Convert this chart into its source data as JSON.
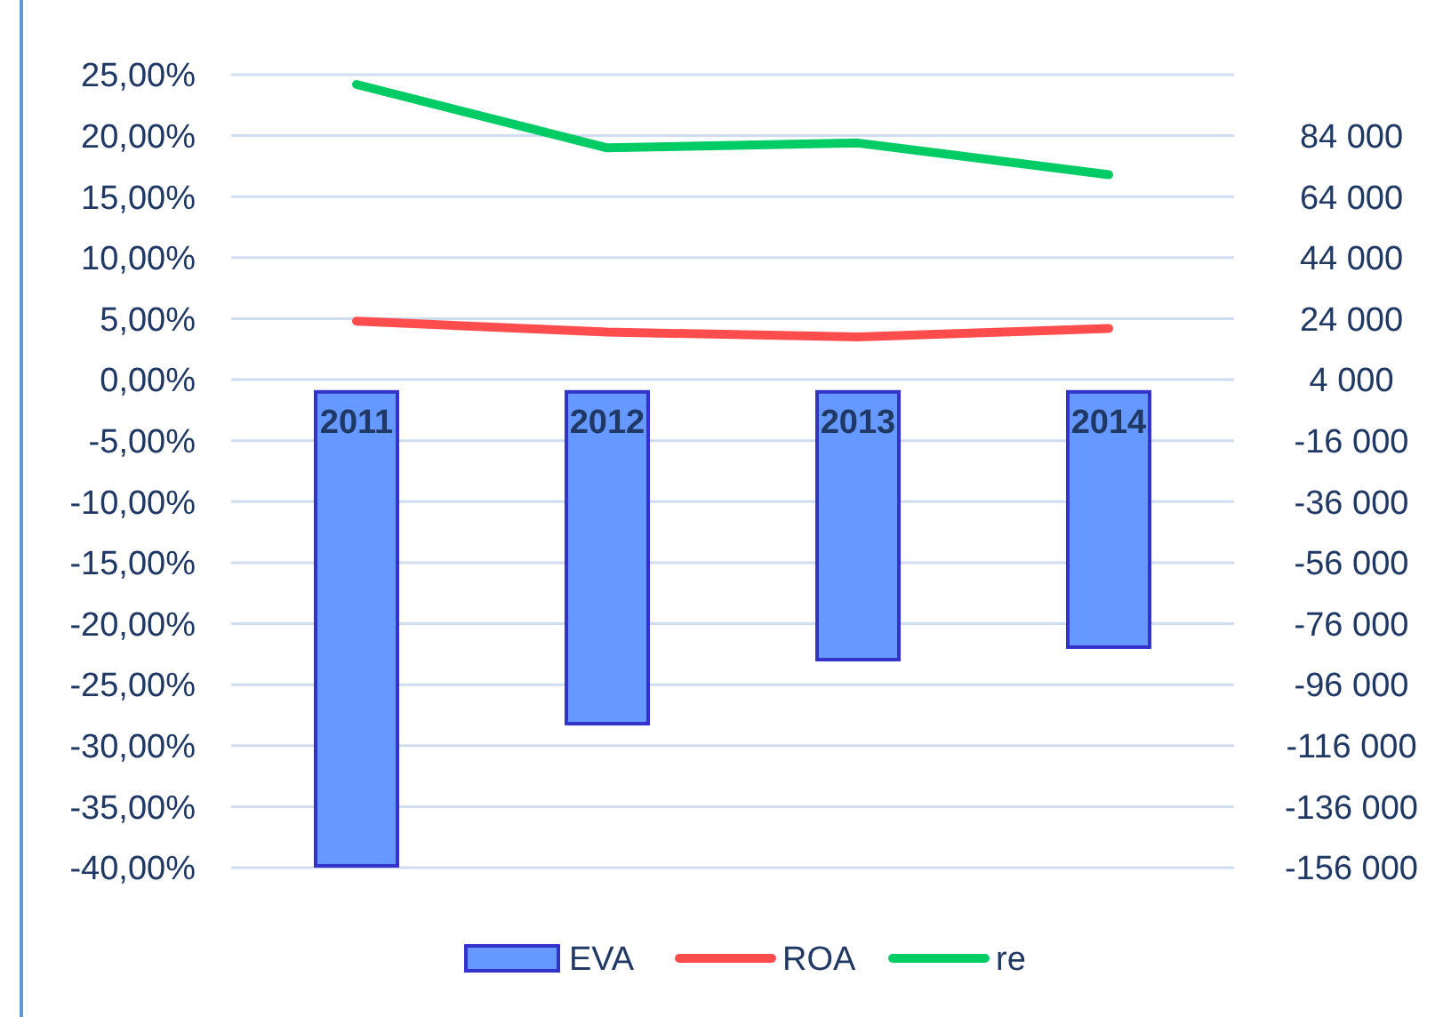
{
  "chart_data": {
    "type": "bar",
    "categories": [
      "2011",
      "2012",
      "2013",
      "2014"
    ],
    "series": [
      {
        "name": "EVA",
        "axis": "y2",
        "color": "#6699ff",
        "values": [
          -155400,
          -108800,
          -87800,
          -83700
        ]
      },
      {
        "name": "ROA",
        "type": "line",
        "color": "#ff4d4d",
        "values": [
          4.8,
          3.9,
          3.5,
          4.2
        ]
      },
      {
        "name": "re",
        "type": "line",
        "color": "#00cc66",
        "values": [
          24.2,
          19.0,
          19.4,
          16.8
        ]
      }
    ],
    "ylim": [
      -40,
      25
    ],
    "yticks": [
      {
        "value": -40,
        "label": "-40,00%"
      },
      {
        "value": -35,
        "label": "-35,00%"
      },
      {
        "value": -30,
        "label": "-30,00%"
      },
      {
        "value": -25,
        "label": "-25,00%"
      },
      {
        "value": -20,
        "label": "-20,00%"
      },
      {
        "value": -15,
        "label": "-15,00%"
      },
      {
        "value": -10,
        "label": "-10,00%"
      },
      {
        "value": -5,
        "label": "-5,00%"
      },
      {
        "value": 0,
        "label": "0,00%"
      },
      {
        "value": 5,
        "label": "5,00%"
      },
      {
        "value": 10,
        "label": "10,00%"
      },
      {
        "value": 15,
        "label": "15,00%"
      },
      {
        "value": 20,
        "label": "20,00%"
      },
      {
        "value": 25,
        "label": "25,00%"
      }
    ],
    "y2lim": [
      -156000,
      104000
    ],
    "y2ticks": [
      {
        "value": -156000,
        "label": "-156 000"
      },
      {
        "value": -136000,
        "label": "-136 000"
      },
      {
        "value": -116000,
        "label": "-116 000"
      },
      {
        "value": -96000,
        "label": "-96 000"
      },
      {
        "value": -76000,
        "label": "-76 000"
      },
      {
        "value": -56000,
        "label": "-56 000"
      },
      {
        "value": -36000,
        "label": "-36 000"
      },
      {
        "value": -16000,
        "label": "-16 000"
      },
      {
        "value": 4000,
        "label": "4 000"
      },
      {
        "value": 24000,
        "label": "24 000"
      },
      {
        "value": 44000,
        "label": "44 000"
      },
      {
        "value": 64000,
        "label": "64 000"
      },
      {
        "value": 84000,
        "label": "84 000"
      }
    ],
    "grid": "y",
    "legend": "bottom",
    "marker": "none",
    "line_style": "solid"
  }
}
